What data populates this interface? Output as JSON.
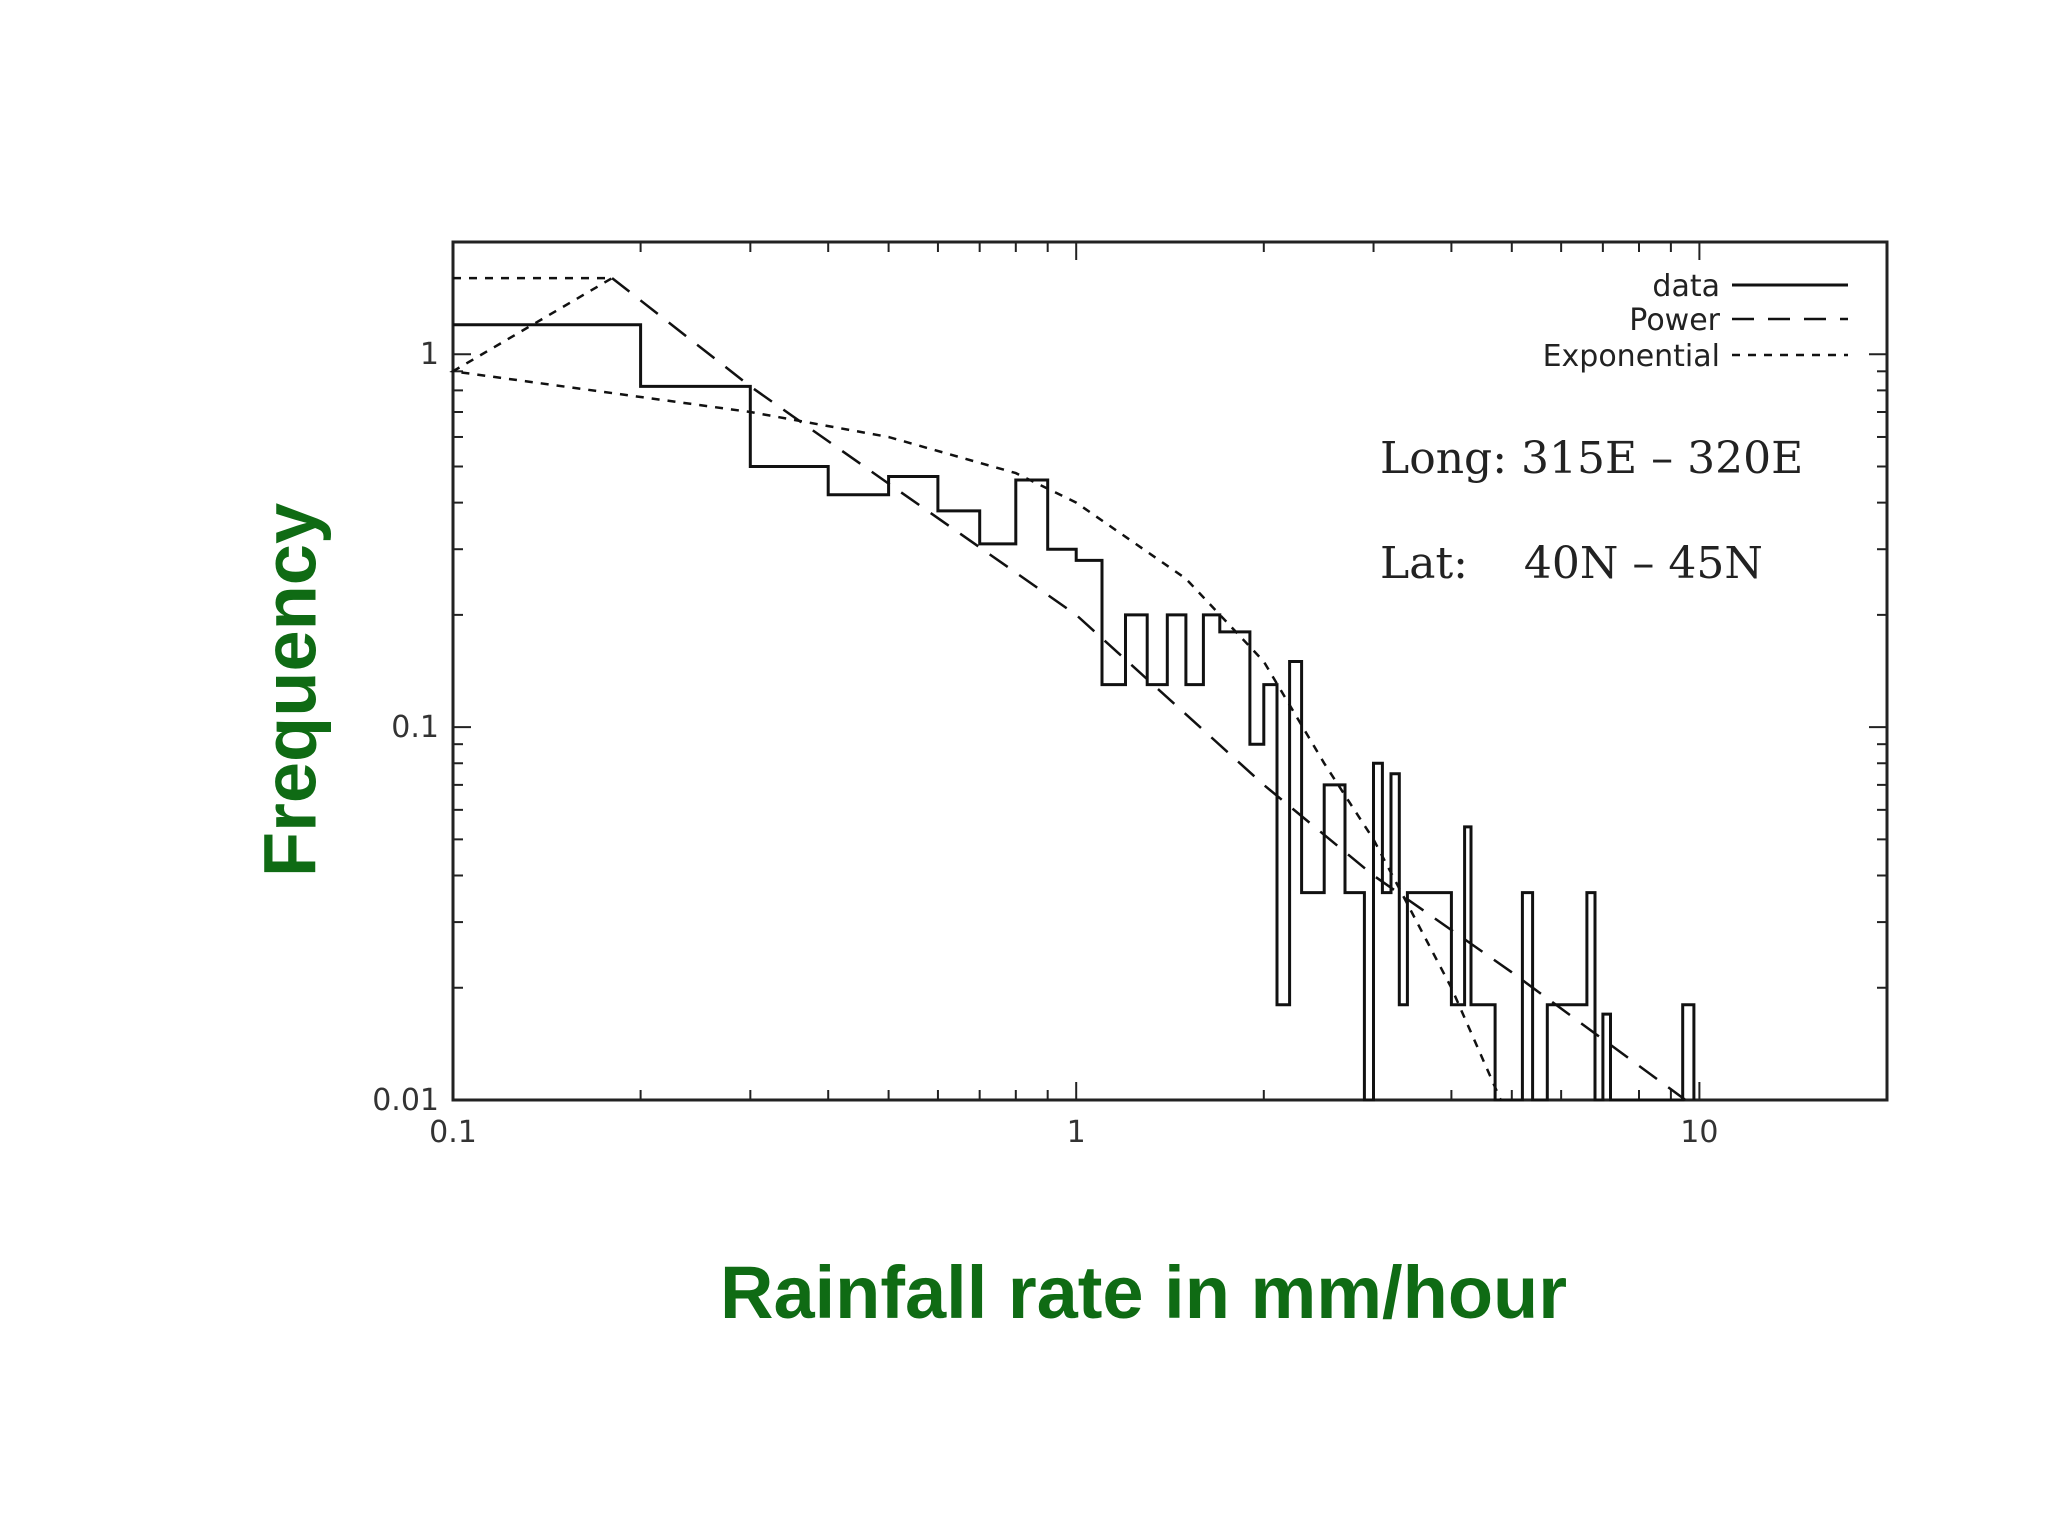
{
  "chart_data": {
    "type": "line",
    "title": "",
    "xlabel": "Rainfall rate in mm/hour",
    "ylabel": "Frequency",
    "x_scale": "log",
    "y_scale": "log",
    "xlim": [
      0.1,
      20
    ],
    "ylim": [
      0.01,
      2
    ],
    "x_ticks": [
      {
        "value": 0.1,
        "label": "0.1"
      },
      {
        "value": 1,
        "label": "1"
      },
      {
        "value": 10,
        "label": "10"
      }
    ],
    "y_ticks": [
      {
        "value": 0.01,
        "label": "0.01"
      },
      {
        "value": 0.1,
        "label": "0.1"
      },
      {
        "value": 1,
        "label": "1"
      }
    ],
    "grid": false,
    "legend_position": "top-right",
    "legend": [
      {
        "label": "data",
        "style": "solid"
      },
      {
        "label": "Power",
        "style": "long-dash"
      },
      {
        "label": "Exponential",
        "style": "short-dash"
      }
    ],
    "annotations": [
      "Long: 315E – 320E",
      "Lat:    40N – 45N"
    ],
    "series": [
      {
        "name": "data",
        "style": "step",
        "points": [
          [
            0.1,
            1.2
          ],
          [
            0.2,
            1.2
          ],
          [
            0.2,
            0.82
          ],
          [
            0.3,
            0.82
          ],
          [
            0.3,
            0.5
          ],
          [
            0.4,
            0.5
          ],
          [
            0.4,
            0.42
          ],
          [
            0.5,
            0.42
          ],
          [
            0.5,
            0.47
          ],
          [
            0.6,
            0.47
          ],
          [
            0.6,
            0.38
          ],
          [
            0.7,
            0.38
          ],
          [
            0.7,
            0.31
          ],
          [
            0.8,
            0.31
          ],
          [
            0.8,
            0.46
          ],
          [
            0.9,
            0.46
          ],
          [
            0.9,
            0.3
          ],
          [
            1.0,
            0.3
          ],
          [
            1.0,
            0.28
          ],
          [
            1.1,
            0.28
          ],
          [
            1.1,
            0.13
          ],
          [
            1.2,
            0.13
          ],
          [
            1.2,
            0.2
          ],
          [
            1.3,
            0.2
          ],
          [
            1.3,
            0.13
          ],
          [
            1.4,
            0.13
          ],
          [
            1.4,
            0.2
          ],
          [
            1.5,
            0.2
          ],
          [
            1.5,
            0.13
          ],
          [
            1.6,
            0.13
          ],
          [
            1.6,
            0.2
          ],
          [
            1.7,
            0.2
          ],
          [
            1.7,
            0.18
          ],
          [
            1.9,
            0.18
          ],
          [
            1.9,
            0.09
          ],
          [
            2.0,
            0.09
          ],
          [
            2.0,
            0.13
          ],
          [
            2.1,
            0.13
          ],
          [
            2.1,
            0.018
          ],
          [
            2.2,
            0.018
          ],
          [
            2.2,
            0.15
          ],
          [
            2.3,
            0.15
          ],
          [
            2.3,
            0.036
          ],
          [
            2.5,
            0.036
          ],
          [
            2.5,
            0.07
          ],
          [
            2.7,
            0.07
          ],
          [
            2.7,
            0.036
          ],
          [
            2.9,
            0.036
          ],
          [
            2.9,
            0.01
          ],
          [
            3.0,
            0.01
          ],
          [
            3.0,
            0.08
          ],
          [
            3.1,
            0.08
          ],
          [
            3.1,
            0.036
          ],
          [
            3.2,
            0.036
          ],
          [
            3.2,
            0.075
          ],
          [
            3.3,
            0.075
          ],
          [
            3.3,
            0.018
          ],
          [
            3.4,
            0.018
          ],
          [
            3.4,
            0.036
          ],
          [
            4.0,
            0.036
          ],
          [
            4.0,
            0.018
          ],
          [
            4.2,
            0.018
          ],
          [
            4.2,
            0.054
          ],
          [
            4.3,
            0.054
          ],
          [
            4.3,
            0.018
          ],
          [
            4.7,
            0.018
          ],
          [
            4.7,
            0.01
          ],
          [
            5.2,
            0.01
          ],
          [
            5.2,
            0.036
          ],
          [
            5.4,
            0.036
          ],
          [
            5.4,
            0.01
          ],
          [
            5.7,
            0.01
          ],
          [
            5.7,
            0.018
          ],
          [
            6.6,
            0.018
          ],
          [
            6.6,
            0.036
          ],
          [
            6.8,
            0.036
          ],
          [
            6.8,
            0.01
          ],
          [
            7.0,
            0.01
          ],
          [
            7.0,
            0.017
          ],
          [
            7.2,
            0.017
          ],
          [
            7.2,
            0.01
          ],
          [
            9.4,
            0.01
          ],
          [
            9.4,
            0.018
          ],
          [
            9.8,
            0.018
          ],
          [
            9.8,
            0.01
          ]
        ]
      },
      {
        "name": "Power",
        "style": "long-dash",
        "points": [
          [
            0.18,
            1.6
          ],
          [
            0.3,
            0.82
          ],
          [
            0.5,
            0.45
          ],
          [
            1.0,
            0.2
          ],
          [
            2.0,
            0.07
          ],
          [
            3.0,
            0.04
          ],
          [
            5.0,
            0.022
          ],
          [
            9.5,
            0.01
          ]
        ]
      },
      {
        "name": "Exponential",
        "style": "short-dash",
        "points": [
          [
            0.1,
            1.6
          ],
          [
            0.18,
            1.6
          ],
          [
            0.1,
            0.9
          ],
          [
            0.3,
            0.7
          ],
          [
            0.5,
            0.6
          ],
          [
            0.8,
            0.48
          ],
          [
            1.0,
            0.4
          ],
          [
            1.5,
            0.25
          ],
          [
            2.0,
            0.15
          ],
          [
            2.5,
            0.08
          ],
          [
            3.0,
            0.05
          ],
          [
            4.0,
            0.02
          ],
          [
            4.8,
            0.01
          ]
        ]
      }
    ]
  }
}
